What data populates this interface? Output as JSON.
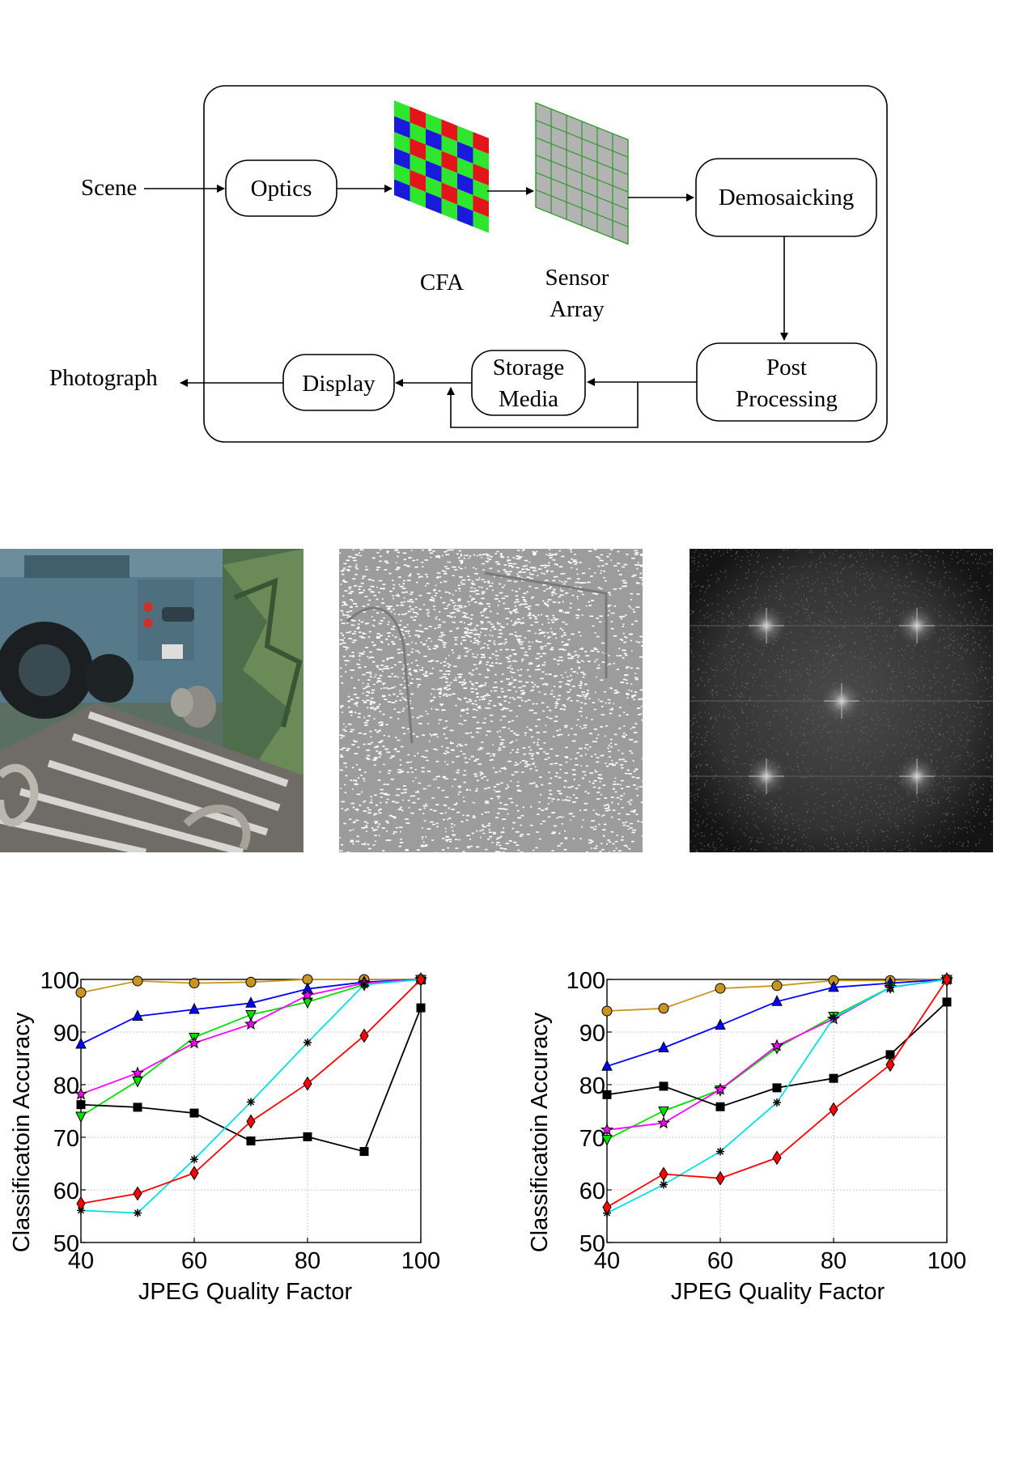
{
  "diagram": {
    "scene_label": "Scene",
    "optics_label": "Optics",
    "cfa_label": "CFA",
    "sensor_label_line1": "Sensor",
    "sensor_label_line2": "Array",
    "demosaicking_label": "Demosaicking",
    "post_label_line1": "Post",
    "post_label_line2": "Processing",
    "storage_label_line1": "Storage",
    "storage_label_line2": "Media",
    "display_label": "Display",
    "photograph_label": "Photograph",
    "colors": {
      "red": "#e4141b",
      "green": "#2ee62e",
      "blue": "#1a1adc",
      "sensor_fill": "#b3b3b3",
      "sensor_line": "#2c9a2c"
    }
  },
  "chart_data": [
    {
      "type": "line",
      "xlabel": "JPEG Quality Factor",
      "ylabel": "Classificatoin Accuracy",
      "xlim": [
        40,
        100
      ],
      "ylim": [
        50,
        100
      ],
      "xticks": [
        40,
        60,
        80,
        100
      ],
      "yticks": [
        50,
        60,
        70,
        80,
        90,
        100
      ],
      "grid": true,
      "x": [
        40,
        50,
        60,
        70,
        80,
        90,
        100
      ],
      "series": [
        {
          "color": "#c8961e",
          "marker": "circle",
          "values": [
            97.5,
            99.7,
            99.3,
            99.5,
            100,
            100,
            100
          ]
        },
        {
          "color": "#0000ff",
          "marker": "triangle-up",
          "values": [
            87.7,
            93,
            94.3,
            95.5,
            98.2,
            99.5,
            100
          ]
        },
        {
          "color": "#00e000",
          "marker": "triangle-down",
          "values": [
            74,
            80.7,
            89,
            93.3,
            95.7,
            99,
            100
          ]
        },
        {
          "color": "#ff00ff",
          "marker": "star",
          "values": [
            78.2,
            82.2,
            87.9,
            91.5,
            97,
            99.3,
            100
          ]
        },
        {
          "color": "#000000",
          "marker": "square",
          "values": [
            76.2,
            75.7,
            74.6,
            69.3,
            70.1,
            67.3,
            94.6
          ]
        },
        {
          "color": "#00e0e0",
          "marker": "asterisk",
          "values": [
            56.1,
            55.6,
            65.8,
            76.7,
            88,
            99,
            100
          ]
        },
        {
          "color": "#ff0000",
          "marker": "diamond",
          "values": [
            57.4,
            59.3,
            63.2,
            73,
            80.2,
            89.3,
            100
          ]
        }
      ]
    },
    {
      "type": "line",
      "xlabel": "JPEG Quality Factor",
      "ylabel": "Classificatoin Accuracy",
      "xlim": [
        40,
        100
      ],
      "ylim": [
        50,
        100
      ],
      "xticks": [
        40,
        60,
        80,
        100
      ],
      "yticks": [
        50,
        60,
        70,
        80,
        90,
        100
      ],
      "grid": true,
      "x": [
        40,
        50,
        60,
        70,
        80,
        90,
        100
      ],
      "series": [
        {
          "color": "#c8961e",
          "marker": "circle",
          "values": [
            94,
            94.5,
            98.3,
            98.8,
            99.8,
            99.8,
            100
          ]
        },
        {
          "color": "#0000ff",
          "marker": "triangle-up",
          "values": [
            83.5,
            87,
            91.3,
            95.8,
            98.5,
            99.3,
            100
          ]
        },
        {
          "color": "#00e000",
          "marker": "triangle-down",
          "values": [
            69.6,
            75,
            79,
            87,
            93,
            98.5,
            100
          ]
        },
        {
          "color": "#ff00ff",
          "marker": "star",
          "values": [
            71.4,
            72.7,
            79.1,
            87.4,
            92.5,
            98.5,
            100
          ]
        },
        {
          "color": "#000000",
          "marker": "square",
          "values": [
            78.1,
            79.7,
            75.8,
            79.4,
            81.2,
            85.7,
            95.7
          ]
        },
        {
          "color": "#00e0e0",
          "marker": "asterisk",
          "values": [
            55.6,
            61,
            67.3,
            76.6,
            92.7,
            98.5,
            100
          ]
        },
        {
          "color": "#ff0000",
          "marker": "diamond",
          "values": [
            56.7,
            63,
            62.2,
            66.1,
            75.3,
            83.8,
            100
          ]
        }
      ]
    }
  ]
}
